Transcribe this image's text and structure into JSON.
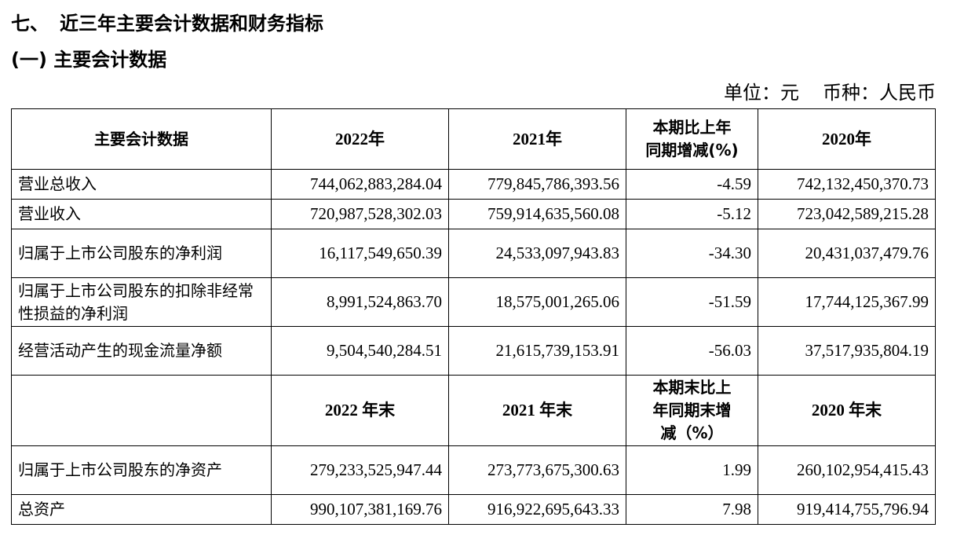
{
  "section": {
    "number": "七、",
    "title": "近三年主要会计数据和财务指标"
  },
  "subsection": {
    "title": "(一) 主要会计数据"
  },
  "unit": {
    "unit_text": "单位：元",
    "currency_text": "币种：人民币"
  },
  "table": {
    "header": {
      "label": "主要会计数据",
      "y2022": "2022年",
      "y2021": "2021年",
      "change_line1": "本期比上年",
      "change_line2": "同期增减(%)",
      "y2020": "2020年"
    },
    "rows": [
      {
        "label": "营业总收入",
        "v2022": "744,062,883,284.04",
        "v2021": "779,845,786,393.56",
        "change": "-4.59",
        "v2020": "742,132,450,370.73"
      },
      {
        "label": "营业收入",
        "v2022": "720,987,528,302.03",
        "v2021": "759,914,635,560.08",
        "change": "-5.12",
        "v2020": "723,042,589,215.28"
      },
      {
        "label": "归属于上市公司股东的净利润",
        "v2022": "16,117,549,650.39",
        "v2021": "24,533,097,943.83",
        "change": "-34.30",
        "v2020": "20,431,037,479.76"
      },
      {
        "label": "归属于上市公司股东的扣除非经常性损益的净利润",
        "v2022": "8,991,524,863.70",
        "v2021": "18,575,001,265.06",
        "change": "-51.59",
        "v2020": "17,744,125,367.99"
      },
      {
        "label": "经营活动产生的现金流量净额",
        "v2022": "9,504,540,284.51",
        "v2021": "21,615,739,153.91",
        "change": "-56.03",
        "v2020": "37,517,935,804.19"
      }
    ],
    "header2": {
      "label": "",
      "y2022": "2022 年末",
      "y2021": "2021 年末",
      "change_line1": "本期末比上",
      "change_line2": "年同期末增",
      "change_line3": "减（%）",
      "y2020": "2020 年末"
    },
    "rows2": [
      {
        "label": "归属于上市公司股东的净资产",
        "v2022": "279,233,525,947.44",
        "v2021": "273,773,675,300.63",
        "change": "1.99",
        "v2020": "260,102,954,415.43"
      },
      {
        "label": "总资产",
        "v2022": "990,107,381,169.76",
        "v2021": "916,922,695,643.33",
        "change": "7.98",
        "v2020": "919,414,755,796.94"
      }
    ]
  }
}
